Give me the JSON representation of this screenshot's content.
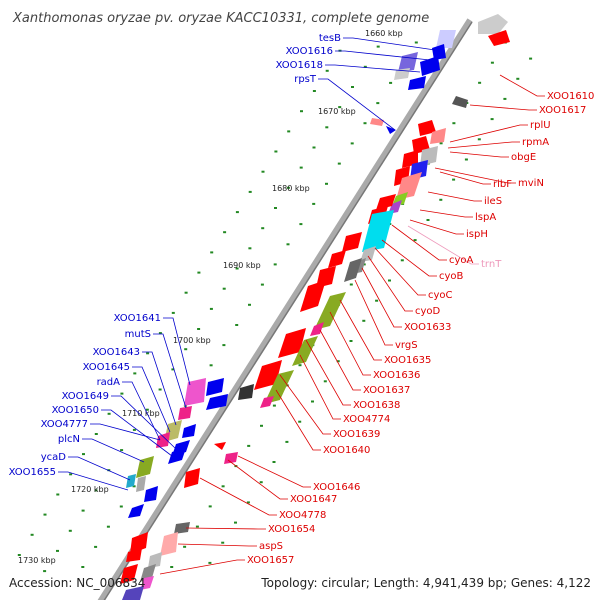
{
  "title": "Xanthomonas oryzae pv. oryzae KACC10331, complete genome",
  "accession": "Accession: NC_006834",
  "topology": "Topology: circular; Length: 4,941,439 bp; Genes: 4,122",
  "scale_labels": [
    "1660 kbp",
    "1670 kbp",
    "1680 kbp",
    "1690 kbp",
    "1700 kbp",
    "1710 kbp",
    "1720 kbp",
    "1730 kbp"
  ],
  "colors": {
    "forward_label": "#0000cc",
    "reverse_label": "#dd0000",
    "trna_label": "#ee99bb",
    "backbone": "#999999",
    "ticks": "#228822"
  },
  "left_labels": [
    "tesB",
    "XOO1616",
    "XOO1618",
    "rpsT",
    "XOO1641",
    "mutS",
    "XOO1643",
    "XOO1645",
    "radA",
    "XOO1649",
    "XOO1650",
    "XOO4777",
    "plcN",
    "ycaD",
    "XOO1655"
  ],
  "right_labels": [
    "XOO1610",
    "XOO1617",
    "rplU",
    "rpmA",
    "obgE",
    "ribF",
    "mviN",
    "ileS",
    "lspA",
    "ispH",
    "cyoA",
    "trnT",
    "cyoB",
    "cyoC",
    "cyoD",
    "XOO1633",
    "vrgS",
    "XOO1635",
    "XOO1636",
    "XOO1637",
    "XOO1638",
    "XOO4774",
    "XOO1639",
    "XOO1640",
    "XOO1646",
    "XOO1647",
    "XOO4778",
    "XOO1654",
    "aspS",
    "XOO1657"
  ]
}
